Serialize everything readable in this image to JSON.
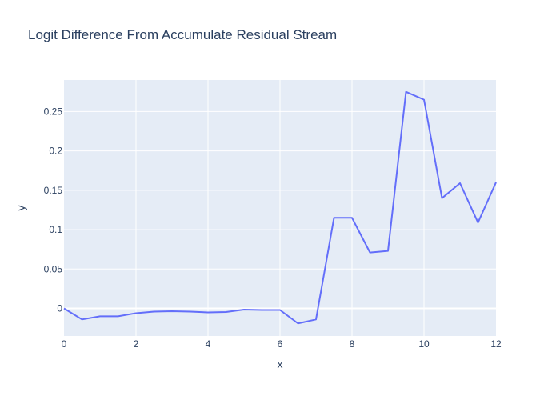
{
  "chart_data": {
    "type": "line",
    "title": "Logit Difference From Accumulate Residual Stream",
    "xlabel": "x",
    "ylabel": "y",
    "xlim": [
      0,
      12
    ],
    "ylim": [
      -0.035,
      0.29
    ],
    "x_ticks": [
      0,
      2,
      4,
      6,
      8,
      10,
      12
    ],
    "x_tick_labels": [
      "0",
      "2",
      "4",
      "6",
      "8",
      "10",
      "12"
    ],
    "y_ticks": [
      0,
      0.05,
      0.1,
      0.15,
      0.2,
      0.25
    ],
    "y_tick_labels": [
      "0",
      "0.05",
      "0.1",
      "0.15",
      "0.2",
      "0.25"
    ],
    "grid": true,
    "legend": false,
    "series": [
      {
        "x": [
          0,
          0.5,
          1,
          1.5,
          2,
          2.5,
          3,
          3.5,
          4,
          4.5,
          5,
          5.5,
          6,
          6.5,
          7,
          7.5,
          8,
          8.5,
          9,
          9.5,
          10,
          10.5,
          11,
          11.5,
          12
        ],
        "y": [
          0.0,
          -0.014,
          -0.01,
          -0.01,
          -0.006,
          -0.004,
          -0.0035,
          -0.004,
          -0.005,
          -0.0045,
          -0.0015,
          -0.002,
          -0.002,
          -0.019,
          -0.014,
          0.115,
          0.115,
          0.071,
          0.073,
          0.275,
          0.265,
          0.14,
          0.159,
          0.109,
          0.16
        ]
      }
    ],
    "colors": {
      "line": "#636efa",
      "plot_bg": "#e5ecf6",
      "grid": "#ffffff",
      "text": "#2a3f5f"
    }
  }
}
